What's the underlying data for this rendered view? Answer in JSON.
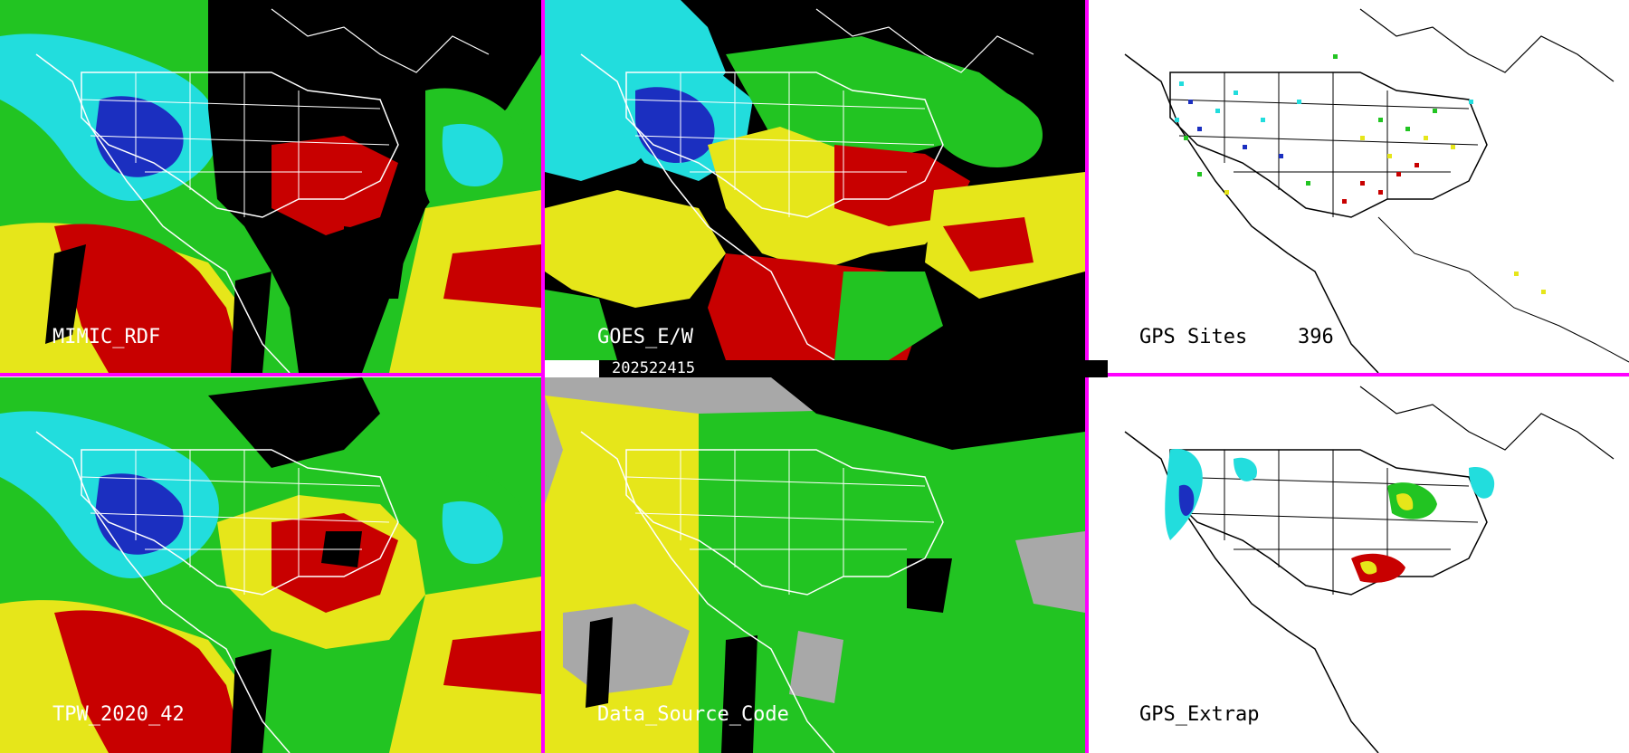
{
  "panels": [
    {
      "id": "p1",
      "label": "MIMIC_RDF"
    },
    {
      "id": "p2",
      "label": "GOES_E/W"
    },
    {
      "id": "p3",
      "label": "GPS Sites",
      "count": "396"
    },
    {
      "id": "p4",
      "label": "TPW_2020_42"
    },
    {
      "id": "p5",
      "label": "Data_Source_Code"
    },
    {
      "id": "p6",
      "label": "GPS_Extrap"
    }
  ],
  "timestamp": "202522415",
  "colors": {
    "divider": "#ff00ff",
    "cyan": "#22dddd",
    "blue": "#1b2fc0",
    "green": "#22c422",
    "yellow": "#e6e61a",
    "red": "#c80000",
    "black": "#000000",
    "gray": "#a8a8a8"
  }
}
